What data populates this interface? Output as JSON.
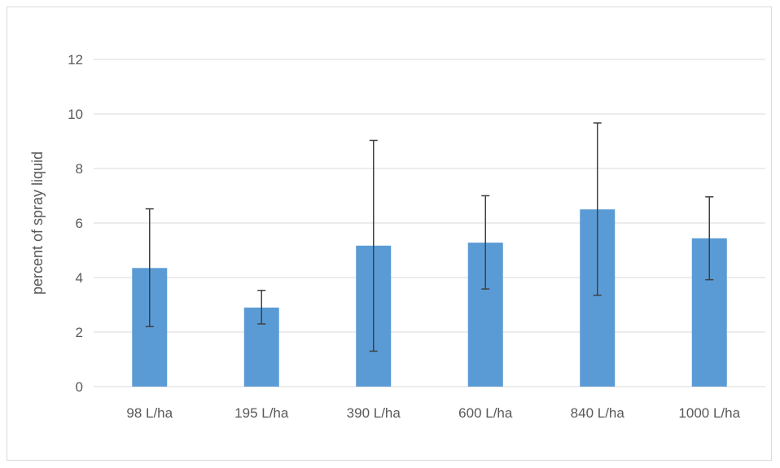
{
  "chart_data": {
    "type": "bar",
    "title": "",
    "xlabel": "",
    "ylabel": "percent of spray liquid",
    "categories": [
      "98 L/ha",
      "195 L/ha",
      "390 L/ha",
      "600 L/ha",
      "840 L/ha",
      "1000 L/ha"
    ],
    "values": [
      4.35,
      2.9,
      5.17,
      5.28,
      6.5,
      5.44
    ],
    "error_low": [
      2.2,
      2.3,
      1.3,
      3.58,
      3.35,
      3.92
    ],
    "error_high": [
      6.52,
      3.53,
      9.03,
      7.0,
      9.67,
      6.96
    ],
    "ylim": [
      0,
      12
    ],
    "yticks": [
      "0",
      "2",
      "4",
      "6",
      "8",
      "10",
      "12"
    ],
    "grid": true,
    "legend": "none",
    "colors": {
      "bar": "#5b9bd5",
      "error_bar": "#404040",
      "grid": "#d9d9d9"
    }
  }
}
